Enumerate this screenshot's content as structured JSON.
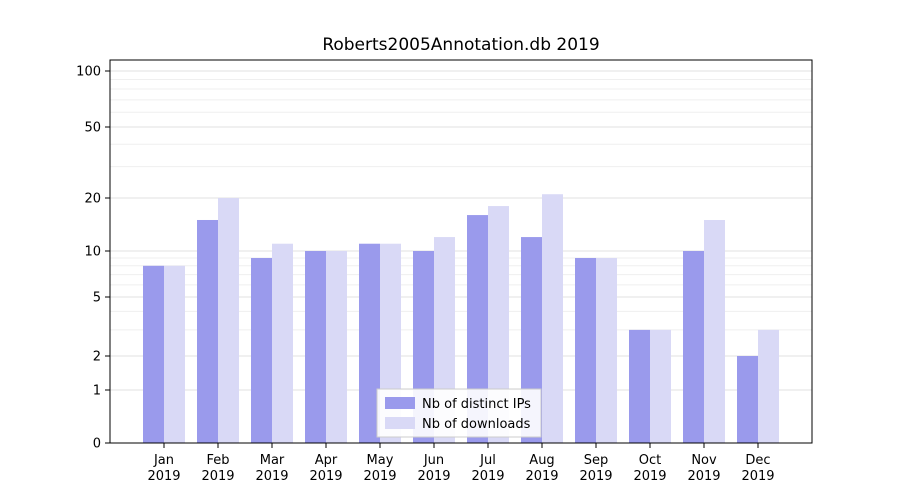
{
  "chart_data": {
    "type": "bar",
    "title": "Roberts2005Annotation.db 2019",
    "categories": [
      "Jan",
      "Feb",
      "Mar",
      "Apr",
      "May",
      "Jun",
      "Jul",
      "Aug",
      "Sep",
      "Oct",
      "Nov",
      "Dec"
    ],
    "category_year": "2019",
    "series": [
      {
        "name": "Nb of distinct IPs",
        "color": "#9a9aec",
        "values": [
          8,
          15,
          9,
          10,
          11,
          10,
          16,
          12,
          9,
          3,
          10,
          2
        ]
      },
      {
        "name": "Nb of downloads",
        "color": "#d9d9f6",
        "values": [
          8,
          20,
          11,
          10,
          11,
          12,
          18,
          21,
          9,
          3,
          15,
          3
        ]
      }
    ],
    "yticks": [
      0,
      1,
      2,
      5,
      10,
      20,
      50,
      100
    ],
    "ylim": [
      0,
      100
    ],
    "yscale": "symlog",
    "grid": true,
    "legend_position": "lower center"
  }
}
